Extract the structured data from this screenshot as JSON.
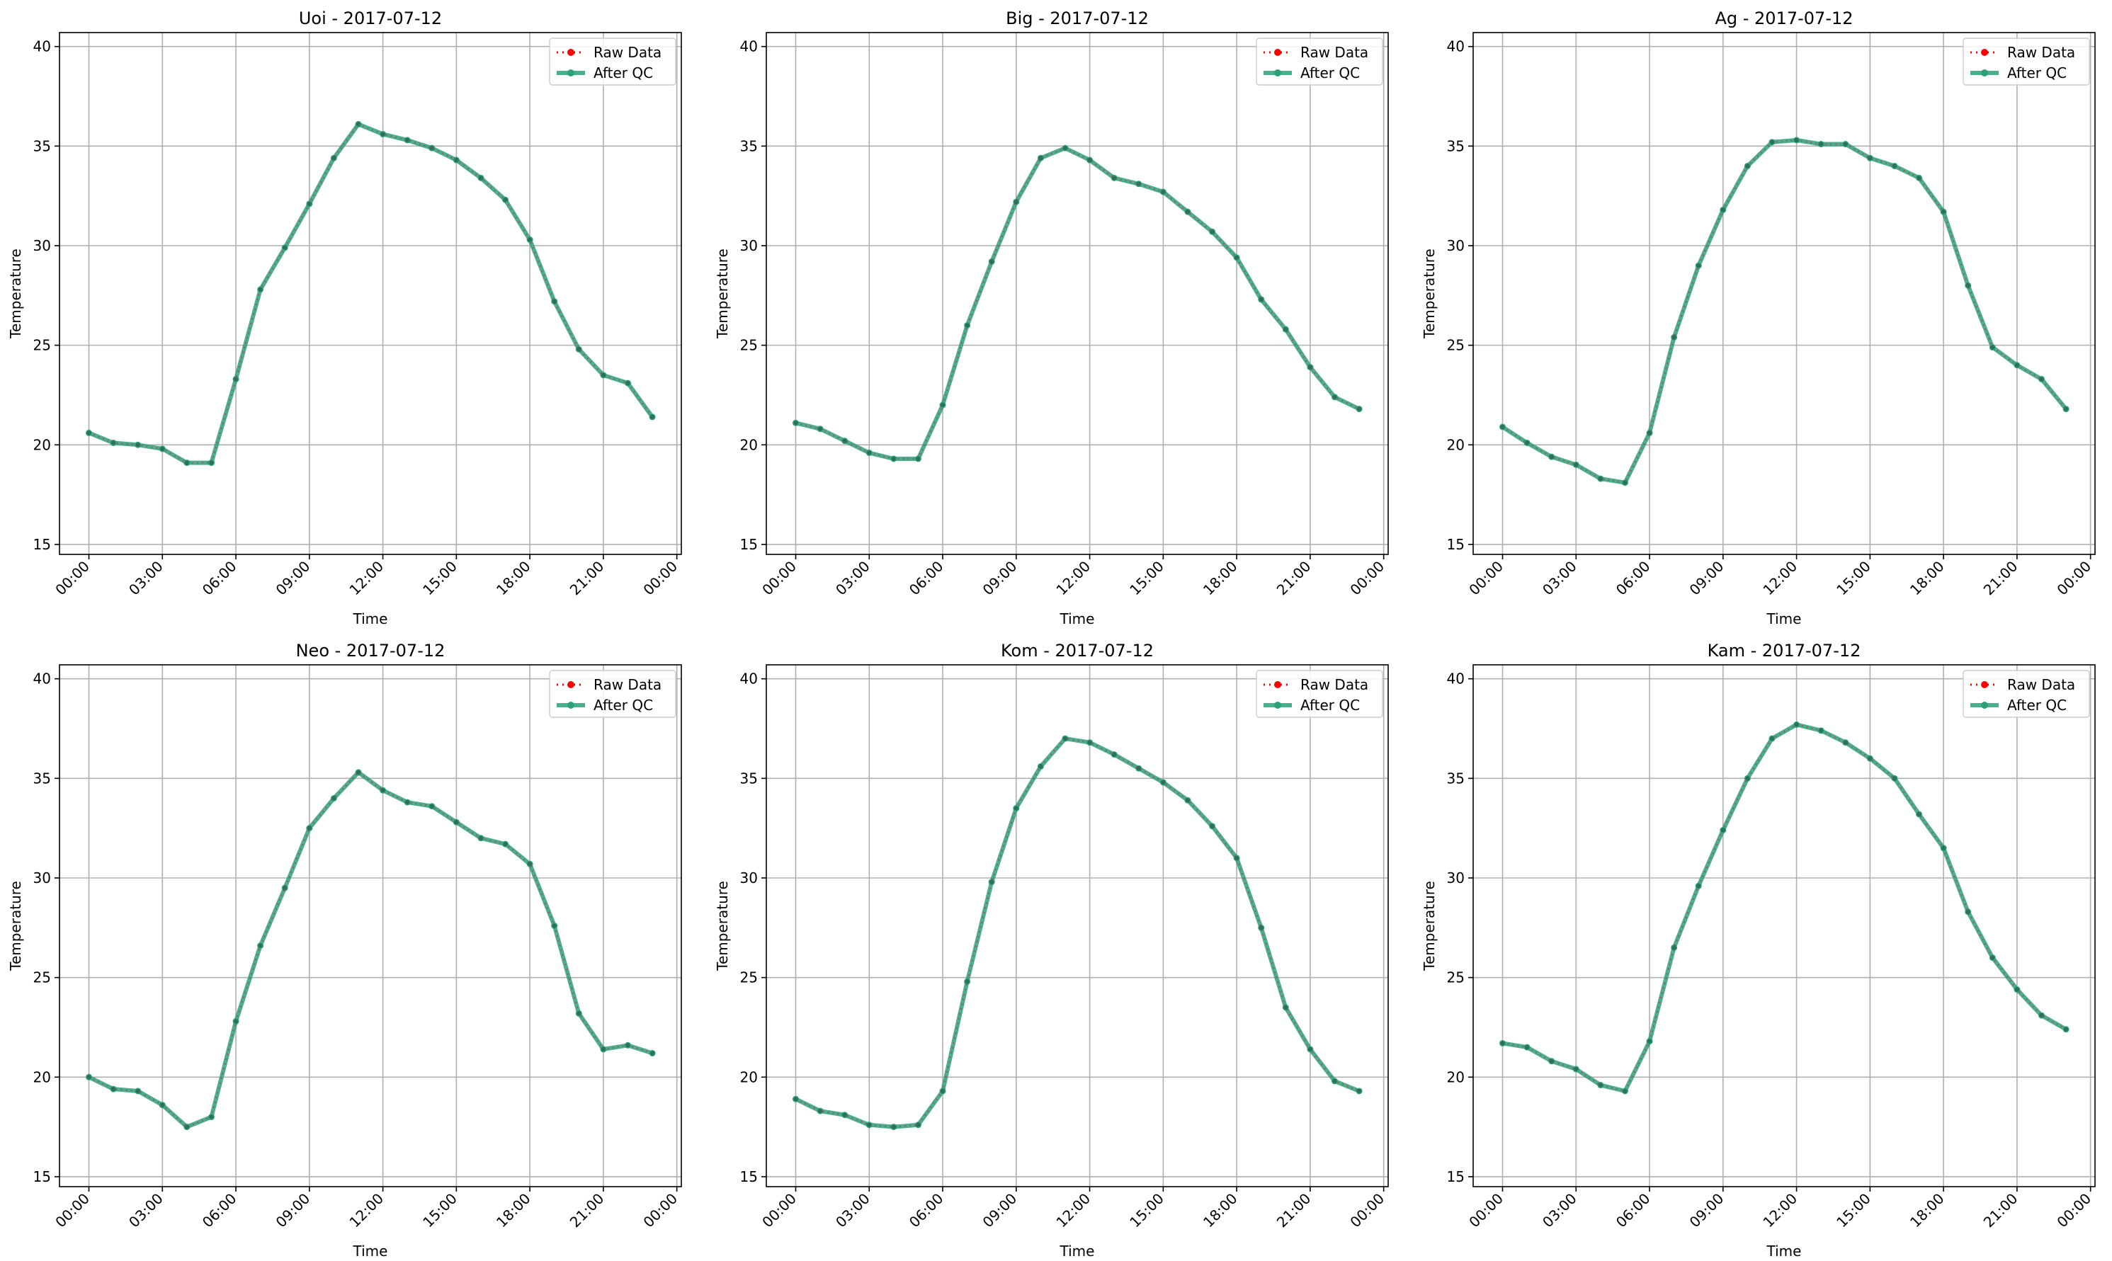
{
  "colors": {
    "raw": "#ff0000",
    "qc": "#2ca07a",
    "grid": "#b0b0b0",
    "axis": "#000000"
  },
  "legend": {
    "raw_label": "Raw Data",
    "qc_label": "After QC"
  },
  "chart_data": [
    {
      "type": "line",
      "title": "Uoi - 2017-07-12",
      "xlabel": "Time",
      "ylabel": "Temperature",
      "ylim": [
        14.5,
        40.7
      ],
      "xlim": [
        "2017-07-11 22:48",
        "2017-07-13 00:11"
      ],
      "yticks": [
        15,
        20,
        25,
        30,
        35,
        40
      ],
      "xticks": [
        "00:00",
        "03:00",
        "06:00",
        "09:00",
        "12:00",
        "15:00",
        "18:00",
        "21:00",
        "00:00"
      ],
      "x": [
        "00:00",
        "01:00",
        "02:00",
        "03:00",
        "04:00",
        "05:00",
        "06:00",
        "07:00",
        "08:00",
        "09:00",
        "10:00",
        "11:00",
        "12:00",
        "13:00",
        "14:00",
        "15:00",
        "16:00",
        "17:00",
        "18:00",
        "19:00",
        "20:00",
        "21:00",
        "22:00",
        "23:00"
      ],
      "series": [
        {
          "name": "Raw Data",
          "values": [
            20.6,
            20.1,
            20.0,
            19.8,
            19.1,
            19.1,
            23.3,
            27.8,
            29.9,
            32.1,
            34.4,
            36.1,
            35.6,
            35.3,
            34.9,
            34.3,
            33.4,
            32.3,
            30.3,
            27.2,
            24.8,
            23.5,
            23.1,
            21.4
          ]
        },
        {
          "name": "After QC",
          "values": [
            20.6,
            20.1,
            20.0,
            19.8,
            19.1,
            19.1,
            23.3,
            27.8,
            29.9,
            32.1,
            34.4,
            36.1,
            35.6,
            35.3,
            34.9,
            34.3,
            33.4,
            32.3,
            30.3,
            27.2,
            24.8,
            23.5,
            23.1,
            21.4
          ]
        }
      ],
      "grid": true,
      "legend_position": "top-right"
    },
    {
      "type": "line",
      "title": "Big - 2017-07-12",
      "xlabel": "Time",
      "ylabel": "Temperature",
      "ylim": [
        14.5,
        40.7
      ],
      "xlim": [
        "2017-07-11 22:48",
        "2017-07-13 00:11"
      ],
      "yticks": [
        15,
        20,
        25,
        30,
        35,
        40
      ],
      "xticks": [
        "00:00",
        "03:00",
        "06:00",
        "09:00",
        "12:00",
        "15:00",
        "18:00",
        "21:00",
        "00:00"
      ],
      "x": [
        "00:00",
        "01:00",
        "02:00",
        "03:00",
        "04:00",
        "05:00",
        "06:00",
        "07:00",
        "08:00",
        "09:00",
        "10:00",
        "11:00",
        "12:00",
        "13:00",
        "14:00",
        "15:00",
        "16:00",
        "17:00",
        "18:00",
        "19:00",
        "20:00",
        "21:00",
        "22:00",
        "23:00"
      ],
      "series": [
        {
          "name": "Raw Data",
          "values": [
            21.1,
            20.8,
            20.2,
            19.6,
            19.3,
            19.3,
            22.0,
            26.0,
            29.2,
            32.2,
            34.4,
            34.9,
            34.3,
            33.4,
            33.1,
            32.7,
            31.7,
            30.7,
            29.4,
            27.3,
            25.8,
            23.9,
            22.4,
            21.8
          ]
        },
        {
          "name": "After QC",
          "values": [
            21.1,
            20.8,
            20.2,
            19.6,
            19.3,
            19.3,
            22.0,
            26.0,
            29.2,
            32.2,
            34.4,
            34.9,
            34.3,
            33.4,
            33.1,
            32.7,
            31.7,
            30.7,
            29.4,
            27.3,
            25.8,
            23.9,
            22.4,
            21.8
          ]
        }
      ],
      "grid": true,
      "legend_position": "top-right"
    },
    {
      "type": "line",
      "title": "Ag - 2017-07-12",
      "xlabel": "Time",
      "ylabel": "Temperature",
      "ylim": [
        14.5,
        40.7
      ],
      "xlim": [
        "2017-07-11 22:48",
        "2017-07-13 00:11"
      ],
      "yticks": [
        15,
        20,
        25,
        30,
        35,
        40
      ],
      "xticks": [
        "00:00",
        "03:00",
        "06:00",
        "09:00",
        "12:00",
        "15:00",
        "18:00",
        "21:00",
        "00:00"
      ],
      "x": [
        "00:00",
        "01:00",
        "02:00",
        "03:00",
        "04:00",
        "05:00",
        "06:00",
        "07:00",
        "08:00",
        "09:00",
        "10:00",
        "11:00",
        "12:00",
        "13:00",
        "14:00",
        "15:00",
        "16:00",
        "17:00",
        "18:00",
        "19:00",
        "20:00",
        "21:00",
        "22:00",
        "23:00"
      ],
      "series": [
        {
          "name": "Raw Data",
          "values": [
            20.9,
            20.1,
            19.4,
            19.0,
            18.3,
            18.1,
            20.6,
            25.4,
            29.0,
            31.8,
            34.0,
            35.2,
            35.3,
            35.1,
            35.1,
            34.4,
            34.0,
            33.4,
            31.7,
            28.0,
            24.9,
            24.0,
            23.3,
            21.8
          ]
        },
        {
          "name": "After QC",
          "values": [
            20.9,
            20.1,
            19.4,
            19.0,
            18.3,
            18.1,
            20.6,
            25.4,
            29.0,
            31.8,
            34.0,
            35.2,
            35.3,
            35.1,
            35.1,
            34.4,
            34.0,
            33.4,
            31.7,
            28.0,
            24.9,
            24.0,
            23.3,
            21.8
          ]
        }
      ],
      "grid": true,
      "legend_position": "top-right"
    },
    {
      "type": "line",
      "title": "Neo - 2017-07-12",
      "xlabel": "Time",
      "ylabel": "Temperature",
      "ylim": [
        14.5,
        40.7
      ],
      "xlim": [
        "2017-07-11 22:48",
        "2017-07-13 00:11"
      ],
      "yticks": [
        15,
        20,
        25,
        30,
        35,
        40
      ],
      "xticks": [
        "00:00",
        "03:00",
        "06:00",
        "09:00",
        "12:00",
        "15:00",
        "18:00",
        "21:00",
        "00:00"
      ],
      "x": [
        "00:00",
        "01:00",
        "02:00",
        "03:00",
        "04:00",
        "05:00",
        "06:00",
        "07:00",
        "08:00",
        "09:00",
        "10:00",
        "11:00",
        "12:00",
        "13:00",
        "14:00",
        "15:00",
        "16:00",
        "17:00",
        "18:00",
        "19:00",
        "20:00",
        "21:00",
        "22:00",
        "23:00"
      ],
      "series": [
        {
          "name": "Raw Data",
          "values": [
            20.0,
            19.4,
            19.3,
            18.6,
            17.5,
            18.0,
            22.8,
            26.6,
            29.5,
            32.5,
            34.0,
            35.3,
            34.4,
            33.8,
            33.6,
            32.8,
            32.0,
            31.7,
            30.7,
            27.6,
            23.2,
            21.4,
            21.6,
            21.2
          ]
        },
        {
          "name": "After QC",
          "values": [
            20.0,
            19.4,
            19.3,
            18.6,
            17.5,
            18.0,
            22.8,
            26.6,
            29.5,
            32.5,
            34.0,
            35.3,
            34.4,
            33.8,
            33.6,
            32.8,
            32.0,
            31.7,
            30.7,
            27.6,
            23.2,
            21.4,
            21.6,
            21.2
          ]
        }
      ],
      "grid": true,
      "legend_position": "top-right"
    },
    {
      "type": "line",
      "title": "Kom - 2017-07-12",
      "xlabel": "Time",
      "ylabel": "Temperature",
      "ylim": [
        14.5,
        40.7
      ],
      "xlim": [
        "2017-07-11 22:48",
        "2017-07-13 00:11"
      ],
      "yticks": [
        15,
        20,
        25,
        30,
        35,
        40
      ],
      "xticks": [
        "00:00",
        "03:00",
        "06:00",
        "09:00",
        "12:00",
        "15:00",
        "18:00",
        "21:00",
        "00:00"
      ],
      "x": [
        "00:00",
        "01:00",
        "02:00",
        "03:00",
        "04:00",
        "05:00",
        "06:00",
        "07:00",
        "08:00",
        "09:00",
        "10:00",
        "11:00",
        "12:00",
        "13:00",
        "14:00",
        "15:00",
        "16:00",
        "17:00",
        "18:00",
        "19:00",
        "20:00",
        "21:00",
        "22:00",
        "23:00"
      ],
      "series": [
        {
          "name": "Raw Data",
          "values": [
            18.9,
            18.3,
            18.1,
            17.6,
            17.5,
            17.6,
            19.3,
            24.8,
            29.8,
            33.5,
            35.6,
            37.0,
            36.8,
            36.2,
            35.5,
            34.8,
            33.9,
            32.6,
            31.0,
            27.5,
            23.5,
            21.4,
            19.8,
            19.3
          ]
        },
        {
          "name": "After QC",
          "values": [
            18.9,
            18.3,
            18.1,
            17.6,
            17.5,
            17.6,
            19.3,
            24.8,
            29.8,
            33.5,
            35.6,
            37.0,
            36.8,
            36.2,
            35.5,
            34.8,
            33.9,
            32.6,
            31.0,
            27.5,
            23.5,
            21.4,
            19.8,
            19.3
          ]
        }
      ],
      "grid": true,
      "legend_position": "top-right"
    },
    {
      "type": "line",
      "title": "Kam - 2017-07-12",
      "xlabel": "Time",
      "ylabel": "Temperature",
      "ylim": [
        14.5,
        40.7
      ],
      "xlim": [
        "2017-07-11 22:48",
        "2017-07-13 00:11"
      ],
      "yticks": [
        15,
        20,
        25,
        30,
        35,
        40
      ],
      "xticks": [
        "00:00",
        "03:00",
        "06:00",
        "09:00",
        "12:00",
        "15:00",
        "18:00",
        "21:00",
        "00:00"
      ],
      "x": [
        "00:00",
        "01:00",
        "02:00",
        "03:00",
        "04:00",
        "05:00",
        "06:00",
        "07:00",
        "08:00",
        "09:00",
        "10:00",
        "11:00",
        "12:00",
        "13:00",
        "14:00",
        "15:00",
        "16:00",
        "17:00",
        "18:00",
        "19:00",
        "20:00",
        "21:00",
        "22:00",
        "23:00"
      ],
      "series": [
        {
          "name": "Raw Data",
          "values": [
            21.7,
            21.5,
            20.8,
            20.4,
            19.6,
            19.3,
            21.8,
            26.5,
            29.6,
            32.4,
            35.0,
            37.0,
            37.7,
            37.4,
            36.8,
            36.0,
            35.0,
            33.2,
            31.5,
            28.3,
            26.0,
            24.4,
            23.1,
            22.4
          ]
        },
        {
          "name": "After QC",
          "values": [
            21.7,
            21.5,
            20.8,
            20.4,
            19.6,
            19.3,
            21.8,
            26.5,
            29.6,
            32.4,
            35.0,
            37.0,
            37.7,
            37.4,
            36.8,
            36.0,
            35.0,
            33.2,
            31.5,
            28.3,
            26.0,
            24.4,
            23.1,
            22.4
          ]
        }
      ],
      "grid": true,
      "legend_position": "top-right"
    }
  ]
}
